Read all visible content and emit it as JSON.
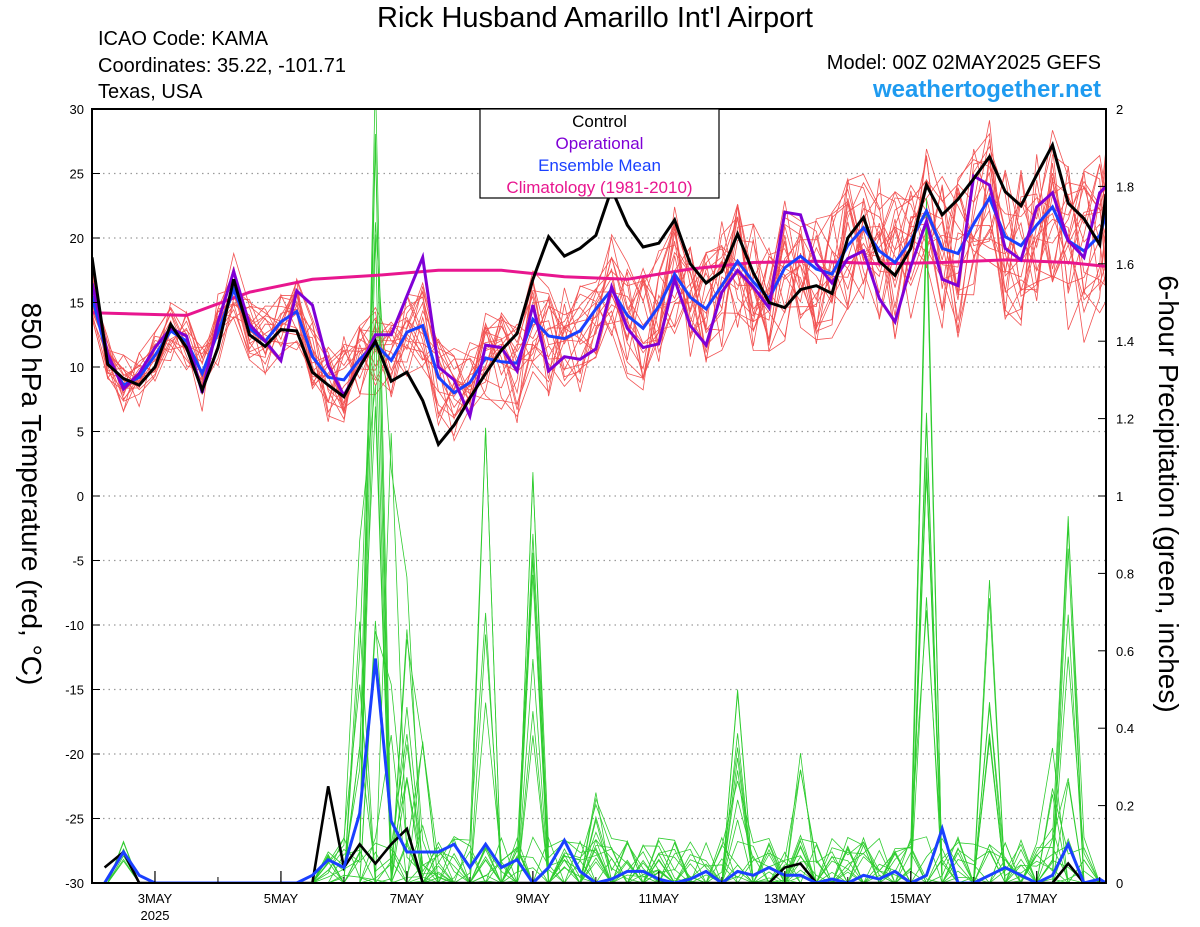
{
  "header": {
    "title": "Rick Husband Amarillo Int'l Airport",
    "icao": "ICAO Code: KAMA",
    "coordinates": "Coordinates: 35.22, -101.71",
    "region": "Texas, USA",
    "model": "Model: 00Z 02MAY2025 GEFS",
    "site": "weathertogether.net"
  },
  "chart_data": {
    "type": "line",
    "ylabel_left": "850 hPa Temperature (red, °C)",
    "ylabel_right": "6-hour Precipitation (green, inches)",
    "ylim_left": [
      -30,
      30
    ],
    "ylim_right": [
      0,
      2
    ],
    "yticks_left": [
      30,
      25,
      20,
      15,
      10,
      5,
      0,
      -5,
      -10,
      -15,
      -20,
      -25,
      -30
    ],
    "yticks_right": [
      2,
      1.8,
      1.6,
      1.4,
      1.2,
      1,
      0.8,
      0.6,
      0.4,
      0.2,
      0
    ],
    "xlim_days": [
      2,
      18.1
    ],
    "xticks": [
      {
        "day": 3,
        "label": "3MAY",
        "sub": "2025"
      },
      {
        "day": 5,
        "label": "5MAY"
      },
      {
        "day": 7,
        "label": "7MAY"
      },
      {
        "day": 9,
        "label": "9MAY"
      },
      {
        "day": 11,
        "label": "11MAY"
      },
      {
        "day": 13,
        "label": "13MAY"
      },
      {
        "day": 15,
        "label": "15MAY"
      },
      {
        "day": 17,
        "label": "17MAY"
      }
    ],
    "grid": "horizontal dotted",
    "legend": [
      "Control",
      "Operational",
      "Ensemble Mean",
      "Climatology (1981-2010)"
    ],
    "legend_position": "top-center",
    "colors": {
      "control": "#000000",
      "operational": "#7f00d6",
      "mean": "#1a40ff",
      "climatology": "#e8168f",
      "members_temp": "#f25252",
      "members_precip": "#2fcc2f"
    },
    "temperature": {
      "control": [
        [
          2.0,
          18.5
        ],
        [
          2.25,
          10.2
        ],
        [
          2.5,
          9.1
        ],
        [
          2.75,
          8.6
        ],
        [
          3.0,
          10.0
        ],
        [
          3.25,
          13.3
        ],
        [
          3.5,
          11.5
        ],
        [
          3.75,
          8.2
        ],
        [
          4.0,
          11.5
        ],
        [
          4.25,
          16.8
        ],
        [
          4.5,
          12.5
        ],
        [
          4.75,
          11.6
        ],
        [
          5.0,
          12.9
        ],
        [
          5.25,
          12.8
        ],
        [
          5.5,
          9.6
        ],
        [
          5.75,
          8.6
        ],
        [
          6.0,
          7.7
        ],
        [
          6.25,
          10.0
        ],
        [
          6.5,
          12.0
        ],
        [
          6.75,
          8.9
        ],
        [
          7.0,
          9.6
        ],
        [
          7.25,
          7.4
        ],
        [
          7.5,
          4.0
        ],
        [
          7.75,
          5.5
        ],
        [
          8.0,
          7.6
        ],
        [
          8.25,
          9.5
        ],
        [
          8.5,
          11.3
        ],
        [
          8.75,
          12.6
        ],
        [
          9.0,
          16.8
        ],
        [
          9.25,
          20.1
        ],
        [
          9.5,
          18.6
        ],
        [
          9.75,
          19.2
        ],
        [
          10.0,
          20.2
        ],
        [
          10.25,
          23.8
        ],
        [
          10.5,
          21.0
        ],
        [
          10.75,
          19.3
        ],
        [
          11.0,
          19.6
        ],
        [
          11.25,
          21.4
        ],
        [
          11.5,
          18.0
        ],
        [
          11.75,
          16.5
        ],
        [
          12.0,
          17.4
        ],
        [
          12.25,
          20.3
        ],
        [
          12.5,
          17.3
        ],
        [
          12.75,
          15.0
        ],
        [
          13.0,
          14.6
        ],
        [
          13.25,
          16.0
        ],
        [
          13.5,
          16.3
        ],
        [
          13.75,
          15.7
        ],
        [
          14.0,
          20.0
        ],
        [
          14.25,
          21.6
        ],
        [
          14.5,
          18.2
        ],
        [
          14.75,
          17.1
        ],
        [
          15.0,
          19.2
        ],
        [
          15.25,
          24.1
        ],
        [
          15.5,
          21.8
        ],
        [
          15.75,
          23.0
        ],
        [
          16.0,
          24.6
        ],
        [
          16.25,
          26.3
        ],
        [
          16.5,
          23.6
        ],
        [
          16.75,
          22.5
        ],
        [
          17.0,
          24.9
        ],
        [
          17.25,
          27.2
        ],
        [
          17.5,
          22.7
        ],
        [
          17.75,
          21.5
        ],
        [
          18.0,
          19.5
        ],
        [
          18.1,
          23.4
        ]
      ],
      "operational": [
        [
          2.0,
          16.5
        ],
        [
          2.25,
          11.0
        ],
        [
          2.5,
          8.3
        ],
        [
          2.75,
          9.5
        ],
        [
          3.0,
          11.5
        ],
        [
          3.25,
          13.0
        ],
        [
          3.5,
          12.4
        ],
        [
          3.75,
          8.0
        ],
        [
          4.0,
          13.5
        ],
        [
          4.25,
          17.4
        ],
        [
          4.5,
          13.3
        ],
        [
          4.75,
          12.0
        ],
        [
          5.0,
          10.5
        ],
        [
          5.25,
          15.9
        ],
        [
          5.5,
          14.8
        ],
        [
          5.75,
          10.1
        ],
        [
          6.0,
          7.8
        ],
        [
          6.25,
          10.0
        ],
        [
          6.5,
          12.5
        ],
        [
          6.75,
          12.5
        ],
        [
          7.0,
          15.5
        ],
        [
          7.25,
          18.5
        ],
        [
          7.5,
          10.0
        ],
        [
          7.75,
          9.0
        ],
        [
          8.0,
          6.2
        ],
        [
          8.25,
          11.7
        ],
        [
          8.5,
          11.5
        ],
        [
          8.75,
          9.7
        ],
        [
          9.0,
          14.8
        ],
        [
          9.25,
          9.7
        ],
        [
          9.5,
          10.8
        ],
        [
          9.75,
          10.6
        ],
        [
          10.0,
          11.4
        ],
        [
          10.25,
          16.2
        ],
        [
          10.5,
          13.0
        ],
        [
          10.75,
          11.5
        ],
        [
          11.0,
          11.8
        ],
        [
          11.25,
          16.8
        ],
        [
          11.5,
          13.2
        ],
        [
          11.75,
          11.7
        ],
        [
          12.0,
          15.8
        ],
        [
          12.25,
          17.5
        ],
        [
          12.5,
          16.2
        ],
        [
          12.75,
          14.6
        ],
        [
          13.0,
          22.0
        ],
        [
          13.25,
          21.8
        ],
        [
          13.5,
          18.0
        ],
        [
          13.75,
          16.5
        ],
        [
          14.0,
          18.4
        ],
        [
          14.25,
          19.0
        ],
        [
          14.5,
          15.3
        ],
        [
          14.75,
          13.5
        ],
        [
          15.0,
          17.8
        ],
        [
          15.25,
          21.3
        ],
        [
          15.5,
          16.8
        ],
        [
          15.75,
          16.3
        ],
        [
          16.0,
          24.8
        ],
        [
          16.25,
          24.1
        ],
        [
          16.5,
          19.2
        ],
        [
          16.75,
          18.3
        ],
        [
          17.0,
          22.4
        ],
        [
          17.25,
          23.5
        ],
        [
          17.5,
          19.8
        ],
        [
          17.75,
          18.5
        ],
        [
          18.0,
          23.5
        ],
        [
          18.1,
          24.0
        ]
      ],
      "mean": [
        [
          2.0,
          15.5
        ],
        [
          2.25,
          10.7
        ],
        [
          2.5,
          8.6
        ],
        [
          2.75,
          9.2
        ],
        [
          3.0,
          10.9
        ],
        [
          3.25,
          12.8
        ],
        [
          3.5,
          12.0
        ],
        [
          3.75,
          9.5
        ],
        [
          4.0,
          12.7
        ],
        [
          4.25,
          16.0
        ],
        [
          4.5,
          13.0
        ],
        [
          4.75,
          12.0
        ],
        [
          5.0,
          13.5
        ],
        [
          5.25,
          14.3
        ],
        [
          5.5,
          10.8
        ],
        [
          5.75,
          9.2
        ],
        [
          6.0,
          9.0
        ],
        [
          6.25,
          10.6
        ],
        [
          6.5,
          11.8
        ],
        [
          6.75,
          10.5
        ],
        [
          7.0,
          12.7
        ],
        [
          7.25,
          13.2
        ],
        [
          7.5,
          9.2
        ],
        [
          7.75,
          8.0
        ],
        [
          8.0,
          8.8
        ],
        [
          8.25,
          10.7
        ],
        [
          8.5,
          10.4
        ],
        [
          8.75,
          10.3
        ],
        [
          9.0,
          13.7
        ],
        [
          9.25,
          12.4
        ],
        [
          9.5,
          12.2
        ],
        [
          9.75,
          12.8
        ],
        [
          10.0,
          14.5
        ],
        [
          10.25,
          16.0
        ],
        [
          10.5,
          14.0
        ],
        [
          10.75,
          13.0
        ],
        [
          11.0,
          14.7
        ],
        [
          11.25,
          17.2
        ],
        [
          11.5,
          15.4
        ],
        [
          11.75,
          14.5
        ],
        [
          12.0,
          16.3
        ],
        [
          12.25,
          18.2
        ],
        [
          12.5,
          16.6
        ],
        [
          12.75,
          15.3
        ],
        [
          13.0,
          17.7
        ],
        [
          13.25,
          18.6
        ],
        [
          13.5,
          17.6
        ],
        [
          13.75,
          17.2
        ],
        [
          14.0,
          19.4
        ],
        [
          14.25,
          20.8
        ],
        [
          14.5,
          19.0
        ],
        [
          14.75,
          18.1
        ],
        [
          15.0,
          19.8
        ],
        [
          15.25,
          22.1
        ],
        [
          15.5,
          19.2
        ],
        [
          15.75,
          18.8
        ],
        [
          16.0,
          21.1
        ],
        [
          16.25,
          23.1
        ],
        [
          16.5,
          20.1
        ],
        [
          16.75,
          19.4
        ],
        [
          17.0,
          21.0
        ],
        [
          17.25,
          22.4
        ],
        [
          17.5,
          19.8
        ],
        [
          17.75,
          19.0
        ],
        [
          18.0,
          20.2
        ],
        [
          18.1,
          21.8
        ]
      ],
      "climatology": [
        [
          2.0,
          14.2
        ],
        [
          3.5,
          14.0
        ],
        [
          4.5,
          15.8
        ],
        [
          5.5,
          16.8
        ],
        [
          6.5,
          17.1
        ],
        [
          7.5,
          17.5
        ],
        [
          8.5,
          17.5
        ],
        [
          9.5,
          17.0
        ],
        [
          10.5,
          16.8
        ],
        [
          11.5,
          17.6
        ],
        [
          12.5,
          18.1
        ],
        [
          13.5,
          18.2
        ],
        [
          14.5,
          18.0
        ],
        [
          15.5,
          18.1
        ],
        [
          16.5,
          18.3
        ],
        [
          17.5,
          18.1
        ],
        [
          18.1,
          17.8
        ]
      ]
    },
    "precipitation": {
      "control": [
        [
          2.2,
          0.04
        ],
        [
          2.5,
          0.08
        ],
        [
          2.75,
          0.0
        ],
        [
          5.25,
          0.0
        ],
        [
          5.5,
          0.0
        ],
        [
          5.75,
          0.25
        ],
        [
          6.0,
          0.04
        ],
        [
          6.25,
          0.1
        ],
        [
          6.5,
          0.05
        ],
        [
          6.75,
          0.1
        ],
        [
          7.0,
          0.14
        ],
        [
          7.25,
          0.0
        ],
        [
          12.75,
          0.0
        ],
        [
          13.0,
          0.04
        ],
        [
          13.25,
          0.05
        ],
        [
          13.5,
          0.0
        ],
        [
          17.25,
          0.0
        ],
        [
          17.5,
          0.05
        ],
        [
          17.75,
          0.0
        ],
        [
          18.1,
          0.0
        ]
      ],
      "mean": [
        [
          2.2,
          0.0
        ],
        [
          2.5,
          0.08
        ],
        [
          2.75,
          0.02
        ],
        [
          3.0,
          0.0
        ],
        [
          5.25,
          0.0
        ],
        [
          5.5,
          0.02
        ],
        [
          5.75,
          0.06
        ],
        [
          6.0,
          0.04
        ],
        [
          6.25,
          0.18
        ],
        [
          6.5,
          0.58
        ],
        [
          6.75,
          0.16
        ],
        [
          7.0,
          0.08
        ],
        [
          7.25,
          0.08
        ],
        [
          7.5,
          0.08
        ],
        [
          7.75,
          0.1
        ],
        [
          8.0,
          0.04
        ],
        [
          8.25,
          0.1
        ],
        [
          8.5,
          0.04
        ],
        [
          8.75,
          0.06
        ],
        [
          9.0,
          0.0
        ],
        [
          9.25,
          0.04
        ],
        [
          9.5,
          0.11
        ],
        [
          9.75,
          0.03
        ],
        [
          10.0,
          0.0
        ],
        [
          10.25,
          0.01
        ],
        [
          10.5,
          0.03
        ],
        [
          10.75,
          0.03
        ],
        [
          11.0,
          0.01
        ],
        [
          11.25,
          0.0
        ],
        [
          11.5,
          0.01
        ],
        [
          11.75,
          0.03
        ],
        [
          12.0,
          0.0
        ],
        [
          12.25,
          0.03
        ],
        [
          12.5,
          0.02
        ],
        [
          12.75,
          0.04
        ],
        [
          13.0,
          0.02
        ],
        [
          13.25,
          0.02
        ],
        [
          13.5,
          0.0
        ],
        [
          13.75,
          0.01
        ],
        [
          14.0,
          0.0
        ],
        [
          14.25,
          0.02
        ],
        [
          14.5,
          0.01
        ],
        [
          14.75,
          0.03
        ],
        [
          15.0,
          0.0
        ],
        [
          15.25,
          0.02
        ],
        [
          15.5,
          0.14
        ],
        [
          15.75,
          0.0
        ],
        [
          16.0,
          0.0
        ],
        [
          16.25,
          0.02
        ],
        [
          16.5,
          0.04
        ],
        [
          16.75,
          0.02
        ],
        [
          17.0,
          0.0
        ],
        [
          17.25,
          0.02
        ],
        [
          17.5,
          0.1
        ],
        [
          17.75,
          0.0
        ],
        [
          18.0,
          0.01
        ],
        [
          18.1,
          0.0
        ]
      ]
    }
  }
}
